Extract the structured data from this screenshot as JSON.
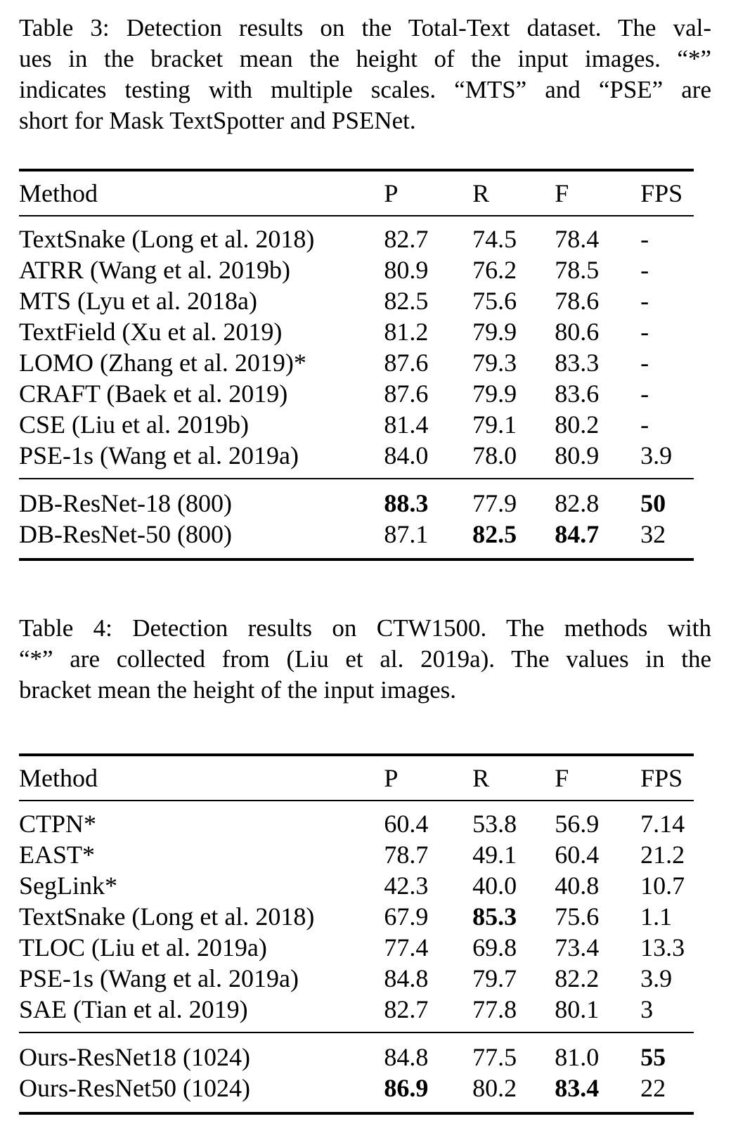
{
  "page": {
    "background": "#ffffff",
    "text_color": "#000000"
  },
  "table3": {
    "caption_lines": [
      "Table 3: Detection results on the Total-Text dataset. The val-",
      "ues in the bracket mean the height of the input images. “*”",
      "indicates testing with multiple scales. “MTS” and “PSE” are",
      "short for Mask TextSpotter and PSENet."
    ],
    "columns": [
      "Method",
      "P",
      "R",
      "F",
      "FPS"
    ],
    "groups": [
      {
        "rows": [
          {
            "method": "TextSnake (Long et al. 2018)",
            "p": "82.7",
            "r": "74.5",
            "f": "78.4",
            "fps": "-",
            "bold": []
          },
          {
            "method": "ATRR (Wang et al. 2019b)",
            "p": "80.9",
            "r": "76.2",
            "f": "78.5",
            "fps": "-",
            "bold": []
          },
          {
            "method": "MTS (Lyu et al. 2018a)",
            "p": "82.5",
            "r": "75.6",
            "f": "78.6",
            "fps": "-",
            "bold": []
          },
          {
            "method": "TextField (Xu et al. 2019)",
            "p": "81.2",
            "r": "79.9",
            "f": "80.6",
            "fps": "-",
            "bold": []
          },
          {
            "method": "LOMO (Zhang et al. 2019)*",
            "p": "87.6",
            "r": "79.3",
            "f": "83.3",
            "fps": "-",
            "bold": []
          },
          {
            "method": "CRAFT (Baek et al. 2019)",
            "p": "87.6",
            "r": "79.9",
            "f": "83.6",
            "fps": "-",
            "bold": []
          },
          {
            "method": "CSE (Liu et al. 2019b)",
            "p": "81.4",
            "r": "79.1",
            "f": "80.2",
            "fps": "-",
            "bold": []
          },
          {
            "method": "PSE-1s (Wang et al. 2019a)",
            "p": "84.0",
            "r": "78.0",
            "f": "80.9",
            "fps": "3.9",
            "bold": []
          }
        ]
      },
      {
        "rows": [
          {
            "method": "DB-ResNet-18 (800)",
            "p": "88.3",
            "r": "77.9",
            "f": "82.8",
            "fps": "50",
            "bold": [
              "p",
              "fps"
            ]
          },
          {
            "method": "DB-ResNet-50 (800)",
            "p": "87.1",
            "r": "82.5",
            "f": "84.7",
            "fps": "32",
            "bold": [
              "r",
              "f"
            ]
          }
        ]
      }
    ]
  },
  "table4": {
    "caption_lines": [
      "Table 4: Detection results on CTW1500. The methods with",
      "“*” are collected from (Liu et al. 2019a). The values in the",
      "bracket mean the height of the input images."
    ],
    "columns": [
      "Method",
      "P",
      "R",
      "F",
      "FPS"
    ],
    "groups": [
      {
        "rows": [
          {
            "method": "CTPN*",
            "p": "60.4",
            "r": "53.8",
            "f": "56.9",
            "fps": "7.14",
            "bold": []
          },
          {
            "method": "EAST*",
            "p": "78.7",
            "r": "49.1",
            "f": "60.4",
            "fps": "21.2",
            "bold": []
          },
          {
            "method": "SegLink*",
            "p": "42.3",
            "r": "40.0",
            "f": "40.8",
            "fps": "10.7",
            "bold": []
          },
          {
            "method": "TextSnake (Long et al. 2018)",
            "p": "67.9",
            "r": "85.3",
            "f": "75.6",
            "fps": "1.1",
            "bold": [
              "r"
            ]
          },
          {
            "method": "TLOC (Liu et al. 2019a)",
            "p": "77.4",
            "r": "69.8",
            "f": "73.4",
            "fps": "13.3",
            "bold": []
          },
          {
            "method": "PSE-1s (Wang et al. 2019a)",
            "p": "84.8",
            "r": "79.7",
            "f": "82.2",
            "fps": "3.9",
            "bold": []
          },
          {
            "method": "SAE (Tian et al. 2019)",
            "p": "82.7",
            "r": "77.8",
            "f": "80.1",
            "fps": "3",
            "bold": []
          }
        ]
      },
      {
        "rows": [
          {
            "method": "Ours-ResNet18 (1024)",
            "p": "84.8",
            "r": "77.5",
            "f": "81.0",
            "fps": "55",
            "bold": [
              "fps"
            ]
          },
          {
            "method": "Ours-ResNet50 (1024)",
            "p": "86.9",
            "r": "80.2",
            "f": "83.4",
            "fps": "22",
            "bold": [
              "p",
              "f"
            ]
          }
        ]
      }
    ]
  }
}
